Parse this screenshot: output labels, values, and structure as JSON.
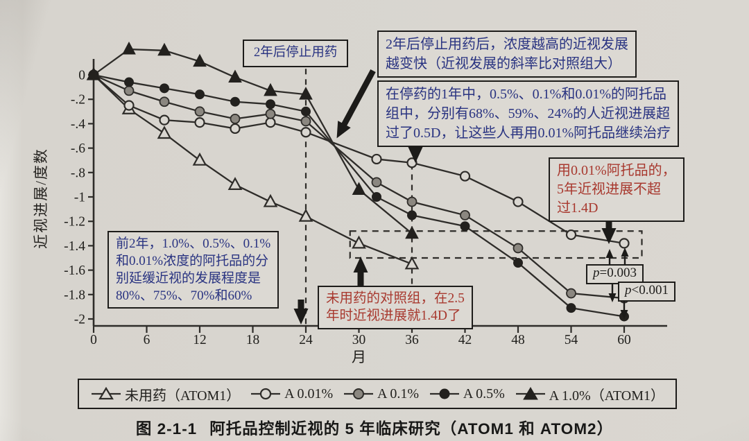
{
  "figure": {
    "caption_prefix": "图 2-1-1",
    "caption_title": "阿托品控制近视的 5 年临床研究（ATOM1 和 ATOM2）"
  },
  "chart_data": {
    "type": "line",
    "title": "",
    "xlabel": "月",
    "ylabel": "近视进展/度数",
    "xlim": [
      0,
      62.5
    ],
    "ylim": [
      -2.05,
      0.3
    ],
    "grid": false,
    "legend_position": "bottom",
    "x_ticks": [
      {
        "v": 0,
        "t": "0"
      },
      {
        "v": 6,
        "t": "6"
      },
      {
        "v": 12,
        "t": "12"
      },
      {
        "v": 18,
        "t": "18"
      },
      {
        "v": 24,
        "t": "24"
      },
      {
        "v": 30,
        "t": "30"
      },
      {
        "v": 36,
        "t": "36"
      },
      {
        "v": 42,
        "t": "42"
      },
      {
        "v": 48,
        "t": "48"
      },
      {
        "v": 54,
        "t": "54"
      },
      {
        "v": 60,
        "t": "60"
      }
    ],
    "y_ticks": [
      {
        "v": 0,
        "t": "0"
      },
      {
        "v": -0.2,
        "t": "-.2"
      },
      {
        "v": -0.4,
        "t": "-.4"
      },
      {
        "v": -0.6,
        "t": "-.6"
      },
      {
        "v": -0.8,
        "t": "-.8"
      },
      {
        "v": -1,
        "t": "-1"
      },
      {
        "v": -1.2,
        "t": "-1.2"
      },
      {
        "v": -1.4,
        "t": "-1.4"
      },
      {
        "v": -1.6,
        "t": "-1.6"
      },
      {
        "v": -1.8,
        "t": "-1.8"
      },
      {
        "v": -2,
        "t": "-2"
      }
    ],
    "series": [
      {
        "name": "未用药（ATOM1）",
        "marker": "triangle-open",
        "points": [
          [
            0,
            0
          ],
          [
            4,
            -0.28
          ],
          [
            8,
            -0.48
          ],
          [
            12,
            -0.7
          ],
          [
            16,
            -0.9
          ],
          [
            20,
            -1.04
          ],
          [
            24,
            -1.16
          ],
          [
            30,
            -1.38
          ],
          [
            36,
            -1.55
          ]
        ]
      },
      {
        "name": "A 0.01%",
        "marker": "circle-open",
        "points": [
          [
            0,
            0
          ],
          [
            4,
            -0.25
          ],
          [
            8,
            -0.37
          ],
          [
            12,
            -0.39
          ],
          [
            16,
            -0.44
          ],
          [
            20,
            -0.39
          ],
          [
            24,
            -0.47
          ],
          [
            32,
            -0.69
          ],
          [
            36,
            -0.72
          ],
          [
            42,
            -0.83
          ],
          [
            48,
            -1.04
          ],
          [
            54,
            -1.31
          ],
          [
            60,
            -1.38
          ]
        ]
      },
      {
        "name": "A 0.1%",
        "marker": "circle-gray",
        "points": [
          [
            0,
            0
          ],
          [
            4,
            -0.13
          ],
          [
            8,
            -0.22
          ],
          [
            12,
            -0.3
          ],
          [
            16,
            -0.36
          ],
          [
            20,
            -0.32
          ],
          [
            24,
            -0.38
          ],
          [
            32,
            -0.88
          ],
          [
            36,
            -1.04
          ],
          [
            42,
            -1.15
          ],
          [
            48,
            -1.42
          ],
          [
            54,
            -1.79
          ],
          [
            60,
            -1.83
          ]
        ]
      },
      {
        "name": "A 0.5%",
        "marker": "circle-black",
        "points": [
          [
            0,
            0
          ],
          [
            4,
            -0.06
          ],
          [
            8,
            -0.11
          ],
          [
            12,
            -0.16
          ],
          [
            16,
            -0.22
          ],
          [
            20,
            -0.24
          ],
          [
            24,
            -0.3
          ],
          [
            32,
            -1.0
          ],
          [
            36,
            -1.15
          ],
          [
            42,
            -1.24
          ],
          [
            48,
            -1.54
          ],
          [
            54,
            -1.91
          ],
          [
            60,
            -1.98
          ]
        ]
      },
      {
        "name": "A 1.0%（ATOM1）",
        "marker": "triangle-filled",
        "points": [
          [
            0,
            0
          ],
          [
            4,
            0.21
          ],
          [
            8,
            0.2
          ],
          [
            12,
            0.11
          ],
          [
            16,
            -0.02
          ],
          [
            20,
            -0.13
          ],
          [
            24,
            -0.16
          ],
          [
            30,
            -0.94
          ],
          [
            36,
            -1.3
          ]
        ]
      }
    ],
    "dashed_vlines": [
      {
        "month": 24,
        "y_top": 0.05
      },
      {
        "month": 36,
        "y_top": -0.73
      }
    ],
    "dashed_box": {
      "x0": 29,
      "x1": 62,
      "y0": -1.5,
      "y1": -1.28
    }
  },
  "annotations": {
    "stop_box": "2年后停止用药",
    "top_box": "2年后停止用药后，浓度越高的近视发展\n越变快（近视发展的斜率比对照组大）",
    "washout_box": "在停药的1年中，0.5%、0.1%和0.01%的阿托品\n组中，分别有68%、59%、24%的人近视进展超\n过了0.5D，让这些人再用0.01%阿托品继续治疗",
    "first2y_box": "前2年，1.0%、0.5%、0.1%\n和0.01%浓度的阿托品的分\n别延缓近视的发展程度是\n80%、75%、70%和60%",
    "control_box": "未用药的对照组，在2.5\n年时近视进展就1.4D了",
    "low_dose_box": "用0.01%阿托品的，\n5年近视进展不超\n过1.4D",
    "p1": {
      "sym": "p",
      "val": "=0.003"
    },
    "p2": {
      "sym": "p",
      "val": "<0.001"
    }
  },
  "legend": {
    "items": [
      {
        "label": "未用药（ATOM1）",
        "marker": "triangle-open"
      },
      {
        "label": "A 0.01%",
        "marker": "circle-open"
      },
      {
        "label": "A 0.1%",
        "marker": "circle-gray"
      },
      {
        "label": "A 0.5%",
        "marker": "circle-black"
      },
      {
        "label": "A 1.0%（ATOM1）",
        "marker": "triangle-filled"
      }
    ]
  },
  "colors": {
    "ink": "#2e2c29",
    "navy": "#293381",
    "red": "#a8392f",
    "page": "#dad7d1",
    "marker_gray": "#8b8780",
    "marker_black": "#23211e"
  }
}
